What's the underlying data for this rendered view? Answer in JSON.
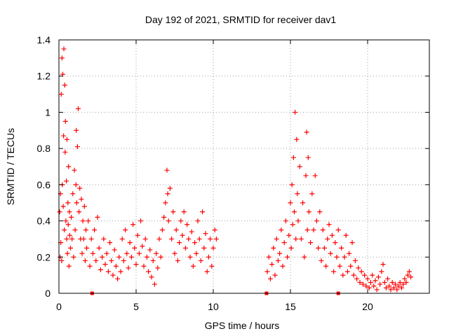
{
  "chart_data": {
    "type": "scatter",
    "title": "Day 192 of 2021, SRMTID for receiver dav1",
    "xlabel": "GPS time / hours",
    "ylabel": "SRMTID / TECUs",
    "xlim": [
      0,
      24
    ],
    "ylim": [
      0,
      1.4
    ],
    "x_ticks": [
      0,
      5,
      10,
      15,
      20
    ],
    "x_tick_labels": [
      "0",
      "5",
      "10",
      "15",
      "20"
    ],
    "y_ticks": [
      0,
      0.2,
      0.4,
      0.6,
      0.8,
      1.0,
      1.2,
      1.4
    ],
    "y_tick_labels": [
      "0",
      "0.2",
      "0.4",
      "0.6",
      "0.8",
      "1",
      "1.2",
      "1.4"
    ],
    "grid": true,
    "series_color": "#ff0000",
    "marker": "plus",
    "series": [
      {
        "name": "SRMTID",
        "points": [
          [
            0.05,
            0.45
          ],
          [
            0.08,
            0.2
          ],
          [
            0.1,
            0.55
          ],
          [
            0.12,
            0.28
          ],
          [
            0.15,
            1.1
          ],
          [
            0.18,
            0.18
          ],
          [
            0.2,
            1.3
          ],
          [
            0.22,
            0.6
          ],
          [
            0.25,
            1.21
          ],
          [
            0.28,
            0.48
          ],
          [
            0.3,
            0.87
          ],
          [
            0.32,
            1.35
          ],
          [
            0.35,
            0.35
          ],
          [
            0.38,
            1.15
          ],
          [
            0.4,
            0.78
          ],
          [
            0.42,
            0.95
          ],
          [
            0.45,
            0.4
          ],
          [
            0.48,
            0.62
          ],
          [
            0.5,
            0.3
          ],
          [
            0.52,
            0.85
          ],
          [
            0.55,
            0.22
          ],
          [
            0.58,
            0.5
          ],
          [
            0.6,
            0.38
          ],
          [
            0.62,
            0.7
          ],
          [
            0.65,
            0.15
          ],
          [
            0.68,
            0.45
          ],
          [
            0.7,
            0.32
          ],
          [
            0.75,
            0.25
          ],
          [
            0.8,
            0.42
          ],
          [
            0.85,
            0.3
          ],
          [
            0.9,
            0.55
          ],
          [
            0.95,
            0.2
          ],
          [
            1.0,
            0.68
          ],
          [
            1.05,
            0.35
          ],
          [
            1.1,
            0.6
          ],
          [
            1.12,
            0.9
          ],
          [
            1.15,
            0.5
          ],
          [
            1.2,
            0.81
          ],
          [
            1.25,
            1.02
          ],
          [
            1.3,
            0.45
          ],
          [
            1.35,
            0.58
          ],
          [
            1.4,
            0.3
          ],
          [
            1.45,
            0.52
          ],
          [
            1.5,
            0.22
          ],
          [
            1.55,
            0.4
          ],
          [
            1.6,
            0.3
          ],
          [
            1.65,
            0.48
          ],
          [
            1.7,
            0.18
          ],
          [
            1.75,
            0.35
          ],
          [
            1.8,
            0.25
          ],
          [
            1.9,
            0.4
          ],
          [
            2.0,
            0.15
          ],
          [
            2.1,
            0.3
          ],
          [
            2.2,
            0.22
          ],
          [
            2.3,
            0.35
          ],
          [
            2.4,
            0.18
          ],
          [
            2.5,
            0.42
          ],
          [
            2.6,
            0.25
          ],
          [
            2.7,
            0.13
          ],
          [
            2.8,
            0.2
          ],
          [
            2.9,
            0.3
          ],
          [
            3.0,
            0.16
          ],
          [
            3.1,
            0.22
          ],
          [
            3.2,
            0.12
          ],
          [
            3.3,
            0.28
          ],
          [
            3.4,
            0.18
          ],
          [
            3.5,
            0.1
          ],
          [
            3.6,
            0.24
          ],
          [
            3.7,
            0.15
          ],
          [
            3.8,
            0.08
          ],
          [
            3.9,
            0.2
          ],
          [
            4.0,
            0.12
          ],
          [
            4.1,
            0.3
          ],
          [
            4.2,
            0.18
          ],
          [
            4.3,
            0.35
          ],
          [
            4.4,
            0.22
          ],
          [
            4.5,
            0.14
          ],
          [
            4.6,
            0.28
          ],
          [
            4.7,
            0.2
          ],
          [
            4.8,
            0.38
          ],
          [
            4.9,
            0.25
          ],
          [
            5.0,
            0.16
          ],
          [
            5.1,
            0.32
          ],
          [
            5.2,
            0.22
          ],
          [
            5.3,
            0.4
          ],
          [
            5.4,
            0.26
          ],
          [
            5.5,
            0.15
          ],
          [
            5.6,
            0.3
          ],
          [
            5.7,
            0.2
          ],
          [
            5.8,
            0.12
          ],
          [
            5.9,
            0.24
          ],
          [
            6.0,
            0.09
          ],
          [
            6.1,
            0.18
          ],
          [
            6.2,
            0.05
          ],
          [
            6.3,
            0.22
          ],
          [
            6.4,
            0.14
          ],
          [
            6.5,
            0.3
          ],
          [
            6.6,
            0.2
          ],
          [
            6.7,
            0.35
          ],
          [
            6.8,
            0.42
          ],
          [
            6.9,
            0.5
          ],
          [
            7.0,
            0.68
          ],
          [
            7.05,
            0.55
          ],
          [
            7.1,
            0.4
          ],
          [
            7.2,
            0.58
          ],
          [
            7.3,
            0.3
          ],
          [
            7.4,
            0.45
          ],
          [
            7.5,
            0.22
          ],
          [
            7.6,
            0.35
          ],
          [
            7.7,
            0.18
          ],
          [
            7.8,
            0.28
          ],
          [
            7.9,
            0.4
          ],
          [
            8.0,
            0.32
          ],
          [
            8.1,
            0.45
          ],
          [
            8.2,
            0.25
          ],
          [
            8.3,
            0.38
          ],
          [
            8.4,
            0.3
          ],
          [
            8.5,
            0.2
          ],
          [
            8.6,
            0.34
          ],
          [
            8.7,
            0.15
          ],
          [
            8.8,
            0.28
          ],
          [
            8.9,
            0.22
          ],
          [
            9.0,
            0.4
          ],
          [
            9.1,
            0.3
          ],
          [
            9.2,
            0.18
          ],
          [
            9.3,
            0.45
          ],
          [
            9.4,
            0.25
          ],
          [
            9.5,
            0.33
          ],
          [
            9.6,
            0.12
          ],
          [
            9.7,
            0.2
          ],
          [
            9.8,
            0.3
          ],
          [
            9.9,
            0.15
          ],
          [
            10.0,
            0.25
          ],
          [
            10.1,
            0.35
          ],
          [
            10.2,
            0.3
          ],
          [
            13.5,
            0.12
          ],
          [
            13.6,
            0.2
          ],
          [
            13.7,
            0.08
          ],
          [
            13.8,
            0.16
          ],
          [
            13.9,
            0.25
          ],
          [
            14.0,
            0.1
          ],
          [
            14.1,
            0.3
          ],
          [
            14.2,
            0.18
          ],
          [
            14.3,
            0.22
          ],
          [
            14.4,
            0.35
          ],
          [
            14.5,
            0.15
          ],
          [
            14.6,
            0.28
          ],
          [
            14.7,
            0.4
          ],
          [
            14.8,
            0.2
          ],
          [
            14.9,
            0.32
          ],
          [
            15.0,
            0.5
          ],
          [
            15.05,
            0.25
          ],
          [
            15.1,
            0.6
          ],
          [
            15.15,
            0.38
          ],
          [
            15.2,
            0.75
          ],
          [
            15.25,
            0.45
          ],
          [
            15.3,
            1.0
          ],
          [
            15.35,
            0.3
          ],
          [
            15.4,
            0.85
          ],
          [
            15.45,
            0.55
          ],
          [
            15.5,
            0.4
          ],
          [
            15.6,
            0.7
          ],
          [
            15.7,
            0.3
          ],
          [
            15.8,
            0.5
          ],
          [
            15.9,
            0.2
          ],
          [
            16.0,
            0.65
          ],
          [
            16.05,
            0.89
          ],
          [
            16.1,
            0.35
          ],
          [
            16.15,
            0.75
          ],
          [
            16.2,
            0.45
          ],
          [
            16.3,
            0.28
          ],
          [
            16.4,
            0.55
          ],
          [
            16.5,
            0.35
          ],
          [
            16.6,
            0.65
          ],
          [
            16.7,
            0.4
          ],
          [
            16.8,
            0.25
          ],
          [
            16.9,
            0.45
          ],
          [
            17.0,
            0.18
          ],
          [
            17.1,
            0.35
          ],
          [
            17.2,
            0.25
          ],
          [
            17.3,
            0.15
          ],
          [
            17.4,
            0.3
          ],
          [
            17.5,
            0.38
          ],
          [
            17.6,
            0.22
          ],
          [
            17.7,
            0.32
          ],
          [
            17.8,
            0.12
          ],
          [
            17.9,
            0.28
          ],
          [
            18.0,
            0.2
          ],
          [
            18.1,
            0.35
          ],
          [
            18.2,
            0.15
          ],
          [
            18.3,
            0.25
          ],
          [
            18.4,
            0.1
          ],
          [
            18.5,
            0.2
          ],
          [
            18.6,
            0.32
          ],
          [
            18.7,
            0.12
          ],
          [
            18.8,
            0.22
          ],
          [
            18.9,
            0.15
          ],
          [
            19.0,
            0.28
          ],
          [
            19.1,
            0.1
          ],
          [
            19.2,
            0.18
          ],
          [
            19.3,
            0.08
          ],
          [
            19.4,
            0.14
          ],
          [
            19.5,
            0.06
          ],
          [
            19.6,
            0.12
          ],
          [
            19.7,
            0.05
          ],
          [
            19.8,
            0.1
          ],
          [
            19.9,
            0.04
          ],
          [
            20.0,
            0.08
          ],
          [
            20.1,
            0.03
          ],
          [
            20.2,
            0.06
          ],
          [
            20.3,
            0.1
          ],
          [
            20.4,
            0.04
          ],
          [
            20.5,
            0.07
          ],
          [
            20.6,
            0.02
          ],
          [
            20.7,
            0.09
          ],
          [
            20.8,
            0.05
          ],
          [
            20.9,
            0.12
          ],
          [
            21.0,
            0.16
          ],
          [
            21.1,
            0.06
          ],
          [
            21.2,
            0.03
          ],
          [
            21.3,
            0.08
          ],
          [
            21.4,
            0.04
          ],
          [
            21.5,
            0.02
          ],
          [
            21.6,
            0.06
          ],
          [
            21.7,
            0.03
          ],
          [
            21.8,
            0.05
          ],
          [
            21.9,
            0.02
          ],
          [
            22.0,
            0.04
          ],
          [
            22.1,
            0.06
          ],
          [
            22.2,
            0.03
          ],
          [
            22.3,
            0.05
          ],
          [
            22.4,
            0.08
          ],
          [
            22.5,
            0.06
          ],
          [
            22.6,
            0.1
          ],
          [
            22.7,
            0.12
          ],
          [
            22.8,
            0.09
          ]
        ]
      }
    ],
    "axis_markers": [
      2.15,
      13.45,
      18.1
    ]
  }
}
